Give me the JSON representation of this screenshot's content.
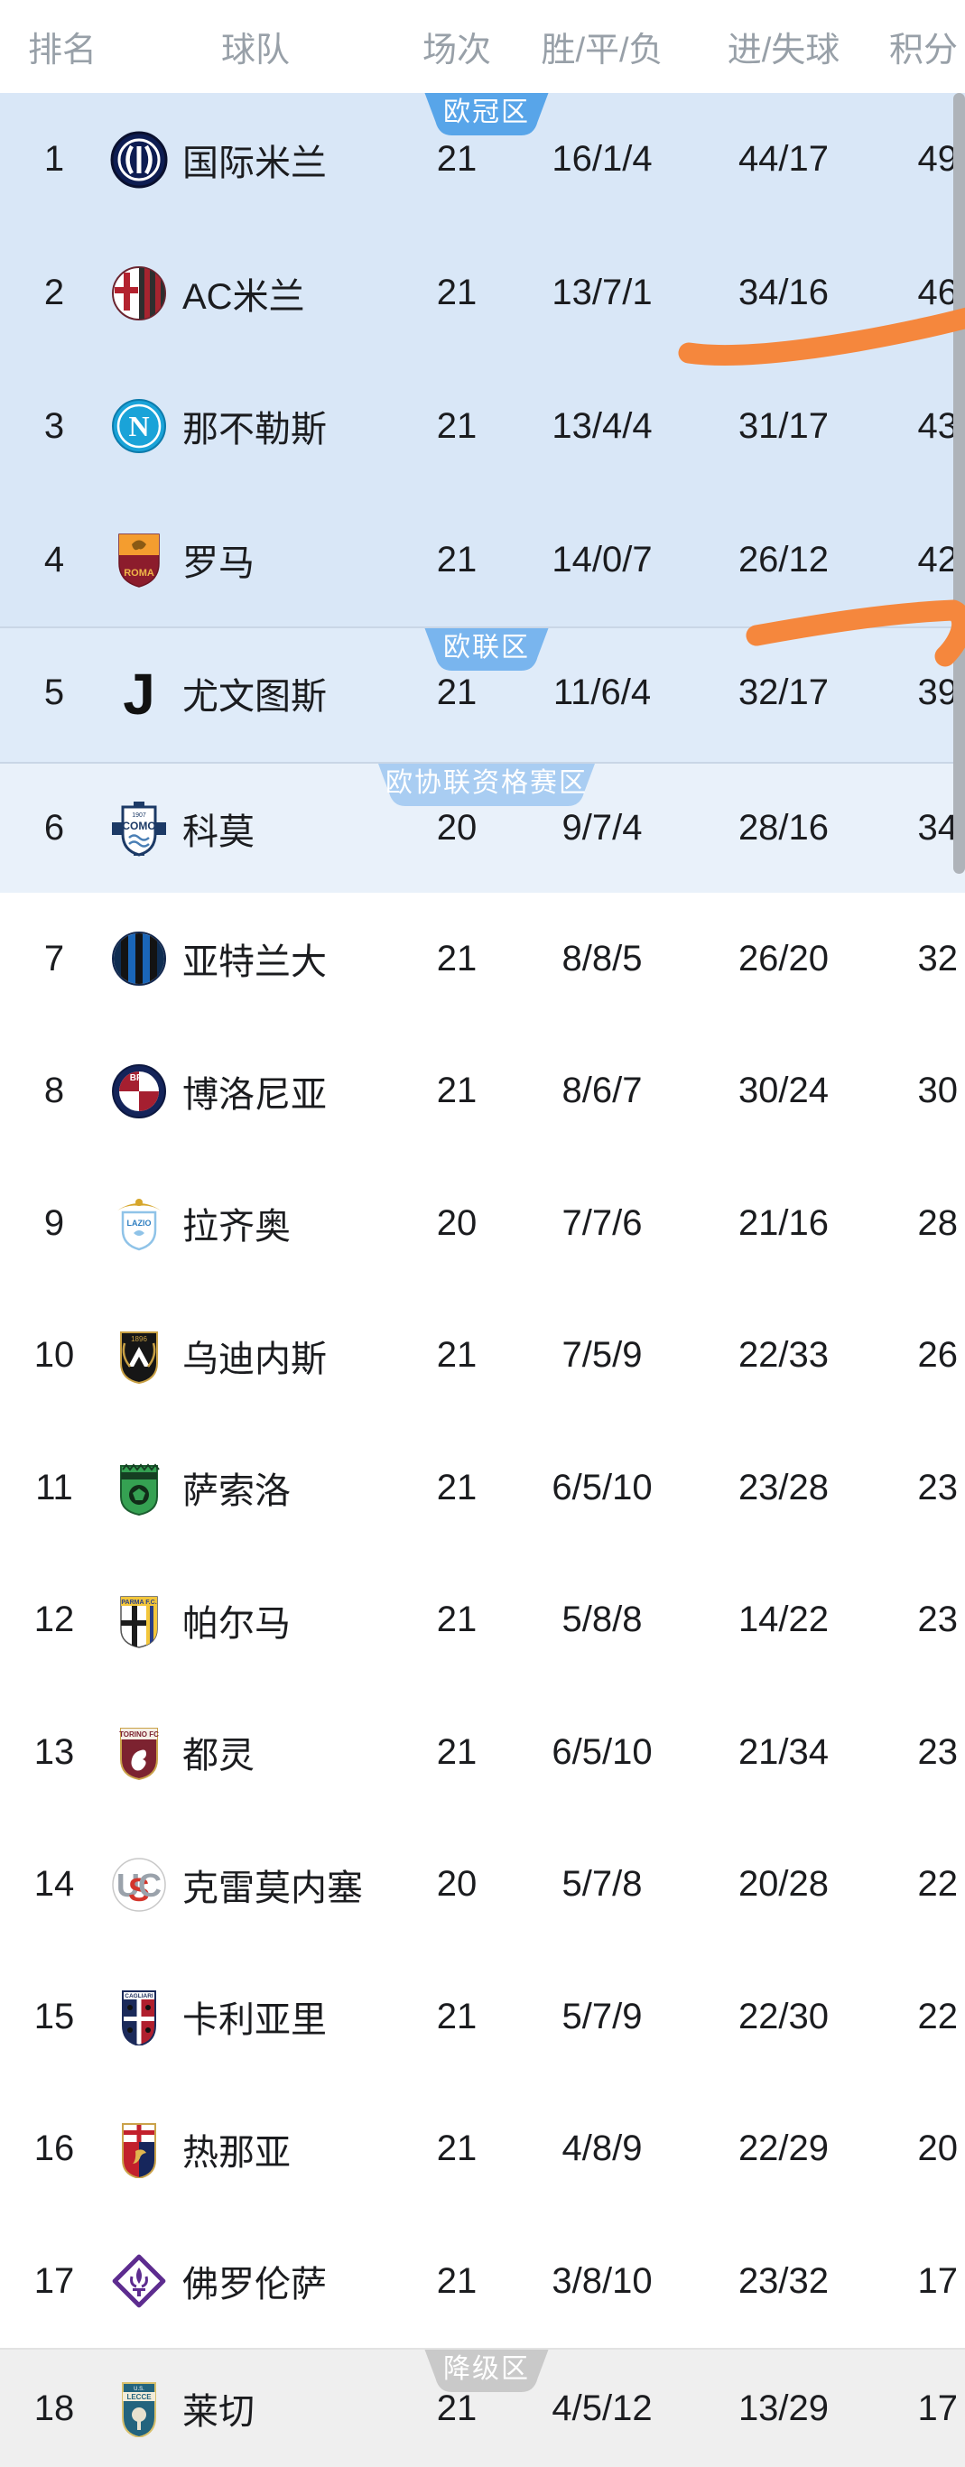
{
  "table": {
    "headers": {
      "rank": "排名",
      "team": "球队",
      "played": "场次",
      "wdl": "胜/平/负",
      "goals": "进/失球",
      "points": "积分"
    },
    "zones": {
      "champions": {
        "label": "欧冠区",
        "color": "#58a5e9"
      },
      "europa": {
        "label": "欧联区",
        "color": "#79b5ee"
      },
      "conference": {
        "label": "欧协联资格赛区",
        "color": "#a9cdf2"
      },
      "relegation": {
        "label": "降级区",
        "color": "#c9c9c9"
      }
    },
    "rows": [
      {
        "rank": "1",
        "team": "国际米兰",
        "logo": "inter-milan",
        "played": "21",
        "wdl": "16/1/4",
        "goals": "44/17",
        "points": "49",
        "section": "a"
      },
      {
        "rank": "2",
        "team": "AC米兰",
        "logo": "ac-milan",
        "played": "21",
        "wdl": "13/7/1",
        "goals": "34/16",
        "points": "46",
        "section": "a"
      },
      {
        "rank": "3",
        "team": "那不勒斯",
        "logo": "napoli",
        "played": "21",
        "wdl": "13/4/4",
        "goals": "31/17",
        "points": "43",
        "section": "a"
      },
      {
        "rank": "4",
        "team": "罗马",
        "logo": "roma",
        "played": "21",
        "wdl": "14/0/7",
        "goals": "26/12",
        "points": "42",
        "section": "a"
      },
      {
        "rank": "5",
        "team": "尤文图斯",
        "logo": "juventus",
        "played": "21",
        "wdl": "11/6/4",
        "goals": "32/17",
        "points": "39",
        "section": "b"
      },
      {
        "rank": "6",
        "team": "科莫",
        "logo": "como",
        "played": "20",
        "wdl": "9/7/4",
        "goals": "28/16",
        "points": "34",
        "section": "c"
      },
      {
        "rank": "7",
        "team": "亚特兰大",
        "logo": "atalanta",
        "played": "21",
        "wdl": "8/8/5",
        "goals": "26/20",
        "points": "32",
        "section": "w"
      },
      {
        "rank": "8",
        "team": "博洛尼亚",
        "logo": "bologna",
        "played": "21",
        "wdl": "8/6/7",
        "goals": "30/24",
        "points": "30",
        "section": "w"
      },
      {
        "rank": "9",
        "team": "拉齐奥",
        "logo": "lazio",
        "played": "20",
        "wdl": "7/7/6",
        "goals": "21/16",
        "points": "28",
        "section": "w"
      },
      {
        "rank": "10",
        "team": "乌迪内斯",
        "logo": "udinese",
        "played": "21",
        "wdl": "7/5/9",
        "goals": "22/33",
        "points": "26",
        "section": "w"
      },
      {
        "rank": "11",
        "team": "萨索洛",
        "logo": "sassuolo",
        "played": "21",
        "wdl": "6/5/10",
        "goals": "23/28",
        "points": "23",
        "section": "w"
      },
      {
        "rank": "12",
        "team": "帕尔马",
        "logo": "parma",
        "played": "21",
        "wdl": "5/8/8",
        "goals": "14/22",
        "points": "23",
        "section": "w"
      },
      {
        "rank": "13",
        "team": "都灵",
        "logo": "torino",
        "played": "21",
        "wdl": "6/5/10",
        "goals": "21/34",
        "points": "23",
        "section": "w"
      },
      {
        "rank": "14",
        "team": "克雷莫内塞",
        "logo": "cremonese",
        "played": "20",
        "wdl": "5/7/8",
        "goals": "20/28",
        "points": "22",
        "section": "w"
      },
      {
        "rank": "15",
        "team": "卡利亚里",
        "logo": "cagliari",
        "played": "21",
        "wdl": "5/7/9",
        "goals": "22/30",
        "points": "22",
        "section": "w"
      },
      {
        "rank": "16",
        "team": "热那亚",
        "logo": "genoa",
        "played": "21",
        "wdl": "4/8/9",
        "goals": "22/29",
        "points": "20",
        "section": "w"
      },
      {
        "rank": "17",
        "team": "佛罗伦萨",
        "logo": "fiorentina",
        "played": "21",
        "wdl": "3/8/10",
        "goals": "23/32",
        "points": "17",
        "section": "w"
      },
      {
        "rank": "18",
        "team": "莱切",
        "logo": "lecce",
        "played": "21",
        "wdl": "4/5/12",
        "goals": "13/29",
        "points": "17",
        "section": "d"
      }
    ]
  },
  "annotations": {
    "strokes": [
      {
        "name": "orange-highlight-under-row-2"
      },
      {
        "name": "orange-highlight-under-row-4"
      }
    ]
  },
  "colors": {
    "text": "#1b1c1f",
    "header-text": "#98a0a8",
    "bg-a": "#d9e7f7",
    "bg-b": "#dfebf9",
    "bg-c": "#e9f1fa",
    "bg-d": "#efefef",
    "divider": "#c9d6e6",
    "divider-gray": "#e2e2e2",
    "scrollbar": "#aeb3b9",
    "annotation": "#f5873d"
  }
}
